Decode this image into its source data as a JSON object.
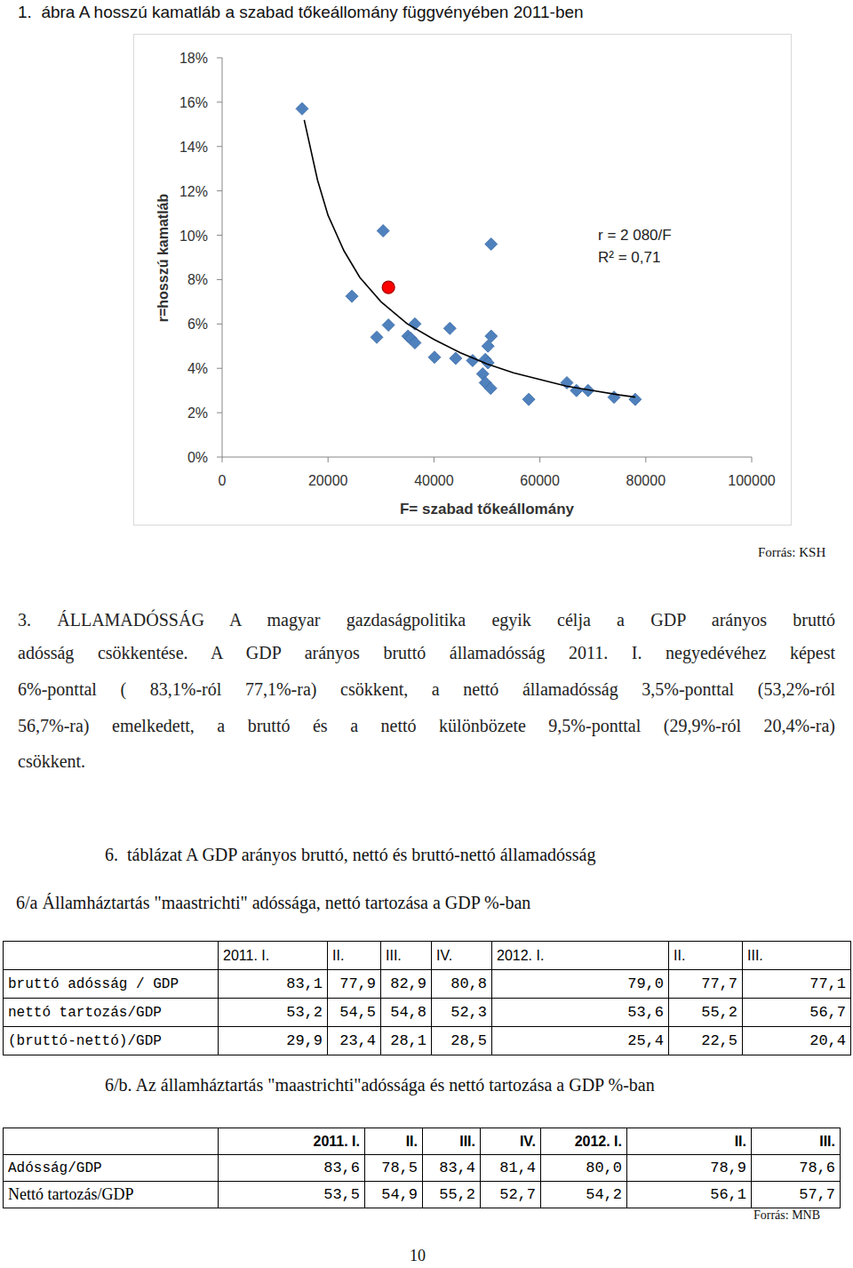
{
  "figure_caption": "1.  ábra A hosszú kamatláb a szabad tőkeállomány függvényében 2011-ben",
  "chart_data": {
    "type": "scatter",
    "xlabel": "F= szabad tőkeállomány",
    "ylabel": "r=hosszú kamatláb",
    "annotations": [
      "r = 2 080/F",
      "R² = 0,71"
    ],
    "xlim": [
      0,
      100000
    ],
    "xticks": [
      0,
      20000,
      40000,
      60000,
      80000,
      100000
    ],
    "ylim": [
      0,
      18
    ],
    "yticks": [
      {
        "value": 0,
        "label": "0%"
      },
      {
        "value": 2,
        "label": "2%"
      },
      {
        "value": 4,
        "label": "4%"
      },
      {
        "value": 6,
        "label": "6%"
      },
      {
        "value": 8,
        "label": "8%"
      },
      {
        "value": 10,
        "label": "10%"
      },
      {
        "value": 12,
        "label": "12%"
      },
      {
        "value": 14,
        "label": "14%"
      },
      {
        "value": 16,
        "label": "16%"
      },
      {
        "value": 18,
        "label": "18%"
      }
    ],
    "grid": false,
    "series": [
      {
        "type": "scatter",
        "color": "#4f81bd",
        "marker": "diamond",
        "x": [
          15100,
          30400,
          50800,
          24500,
          29200,
          31400,
          36400,
          35100,
          35600,
          36400,
          43000,
          40100,
          44100,
          47300,
          49700,
          50200,
          50200,
          50800,
          49200,
          49700,
          50700,
          57900,
          65100,
          66900,
          69100,
          74000,
          78000
        ],
        "values": [
          15.7,
          10.2,
          9.6,
          7.25,
          5.4,
          5.95,
          6.0,
          5.45,
          5.35,
          5.15,
          5.8,
          4.5,
          4.45,
          4.35,
          4.4,
          4.25,
          5.0,
          5.45,
          3.75,
          3.35,
          3.1,
          2.6,
          3.35,
          3.0,
          3.0,
          2.7,
          2.6
        ]
      },
      {
        "type": "scatter",
        "color": "#ff0000",
        "marker": "circle",
        "x": [
          31400
        ],
        "values": [
          7.65
        ]
      },
      {
        "type": "line",
        "color": "#000000",
        "line_style": "solid",
        "x": [
          15500,
          18000,
          20000,
          23000,
          26000,
          30000,
          35000,
          40000,
          45000,
          50000,
          55000,
          60000,
          65000,
          70000,
          75000,
          78000
        ],
        "values": [
          15.2,
          12.5,
          10.9,
          9.3,
          8.1,
          7.0,
          6.0,
          5.3,
          4.7,
          4.2,
          3.8,
          3.5,
          3.2,
          3.0,
          2.8,
          2.7
        ]
      }
    ]
  },
  "figure_source": "Forrás: KSH",
  "section": {
    "lines": [
      "3. ÁLLAMADÓSSÁG A magyar gazdaságpolitika egyik célja a GDP arányos bruttó",
      "adósság csökkentése. A GDP arányos bruttó államadósság 2011. I. negyedévéhez képest",
      "6%-ponttal ( 83,1%-ról 77,1%-ra) csökkent, a nettó államadósság 3,5%-ponttal (53,2%-ról",
      "56,7%-ra) emelkedett, a bruttó és a nettó különbözete 9,5%-ponttal (29,9%-ról 20,4%-ra)",
      "csökkent."
    ]
  },
  "table_title": "6.  táblázat A GDP arányos bruttó, nettó és bruttó-nettó államadósság",
  "table_a": {
    "title": "6/a Államháztartás \"maastrichti\" adóssága, nettó tartozása a GDP %-ban",
    "header": [
      "2011. I.",
      "II.",
      "III.",
      "IV.",
      "2012. I.",
      "II.",
      "III."
    ],
    "rows": [
      {
        "label": "bruttó adósság / GDP",
        "cells": [
          "83,1",
          "77,9",
          "82,9",
          "80,8",
          "79,0",
          "77,7",
          "77,1"
        ]
      },
      {
        "label": "nettó tartozás/GDP",
        "cells": [
          "53,2",
          "54,5",
          "54,8",
          "52,3",
          "53,6",
          "55,2",
          "56,7"
        ]
      },
      {
        "label": "(bruttó-nettó)/GDP",
        "cells": [
          "29,9",
          "23,4",
          "28,1",
          "28,5",
          "25,4",
          "22,5",
          "20,4"
        ]
      }
    ]
  },
  "table_b": {
    "title": "6/b. Az államháztartás \"maastrichti\"adóssága és nettó tartozása a GDP %-ban",
    "header": [
      "2011. I.",
      "II.",
      "III.",
      "IV.",
      "2012. I.",
      "II.",
      "III."
    ],
    "rows": [
      {
        "label": "Adósság/GDP",
        "cells": [
          "83,6",
          "78,5",
          "83,4",
          "81,4",
          "80,0",
          "78,9",
          "78,6"
        ]
      },
      {
        "label": "Nettó tartozás/GDP",
        "cells": [
          "53,5",
          "54,9",
          "55,2",
          "52,7",
          "54,2",
          "56,1",
          "57,7"
        ]
      }
    ],
    "source": "Forrás: MNB"
  },
  "page_number": "10"
}
